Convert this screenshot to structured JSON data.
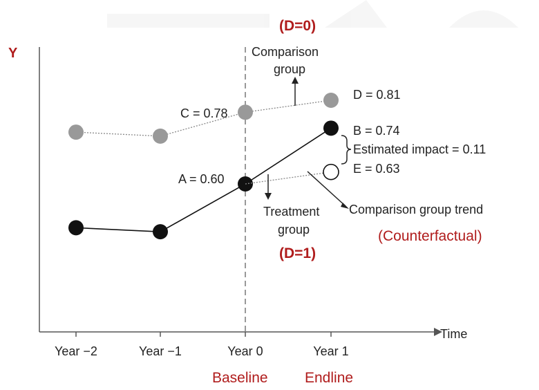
{
  "chart_data": {
    "type": "line",
    "title": "",
    "xlabel": "Time",
    "ylabel": "Y",
    "categories": [
      "Year −2",
      "Year −1",
      "Year 0",
      "Year 1"
    ],
    "ylim": [
      0.3,
      0.95
    ],
    "grid": false,
    "series": [
      {
        "name": "Comparison group",
        "values": [
          0.73,
          0.72,
          0.78,
          0.81
        ],
        "color": "#999999",
        "line": "dotted"
      },
      {
        "name": "Treatment group",
        "values": [
          0.49,
          0.48,
          0.6,
          0.74
        ],
        "color": "#111111",
        "line": "solid"
      },
      {
        "name": "Comparison group trend",
        "x": [
          "Year 0",
          "Year 1"
        ],
        "values": [
          0.6,
          0.63
        ],
        "color": "#999999",
        "line": "dotted",
        "marker": "hollow"
      }
    ],
    "annotations": {
      "baseline_label": "Baseline",
      "endline_label": "Endline",
      "comparison_group_line1": "Comparison",
      "comparison_group_line2": "group",
      "treatment_group_line1": "Treatment",
      "treatment_group_line2": "group",
      "d0": "(D=0)",
      "d1": "(D=1)",
      "point_c": "C = 0.78",
      "point_d": "D = 0.81",
      "point_a": "A = 0.60",
      "point_b": "B = 0.74",
      "point_e": "E = 0.63",
      "estimated_impact": "Estimated impact = 0.11",
      "trend_label": "Comparison group trend",
      "counterfactual": "(Counterfactual)"
    }
  }
}
